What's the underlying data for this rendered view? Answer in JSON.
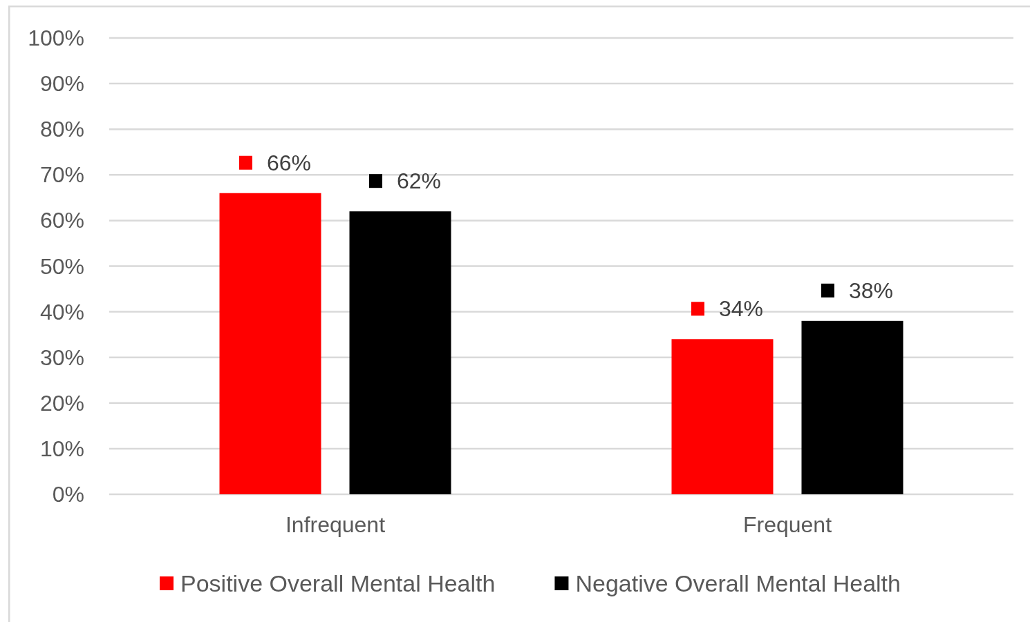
{
  "chart_data": {
    "type": "bar",
    "categories": [
      "Infrequent",
      "Frequent"
    ],
    "series": [
      {
        "name": "Positive Overall Mental Health",
        "color": "#ff0000",
        "values": [
          66,
          34
        ],
        "value_labels": [
          "66%",
          "34%"
        ]
      },
      {
        "name": "Negative Overall Mental Health",
        "color": "#000000",
        "values": [
          62,
          38
        ],
        "value_labels": [
          "62%",
          "38%"
        ]
      }
    ],
    "ylim": [
      0,
      100
    ],
    "yticks": [
      {
        "value": 0,
        "label": "0%"
      },
      {
        "value": 10,
        "label": "10%"
      },
      {
        "value": 20,
        "label": "20%"
      },
      {
        "value": 30,
        "label": "30%"
      },
      {
        "value": 40,
        "label": "40%"
      },
      {
        "value": 50,
        "label": "50%"
      },
      {
        "value": 60,
        "label": "60%"
      },
      {
        "value": 70,
        "label": "70%"
      },
      {
        "value": 80,
        "label": "80%"
      },
      {
        "value": 90,
        "label": "90%"
      },
      {
        "value": 100,
        "label": "100%"
      }
    ],
    "grid": "y",
    "legend": "bottom"
  }
}
